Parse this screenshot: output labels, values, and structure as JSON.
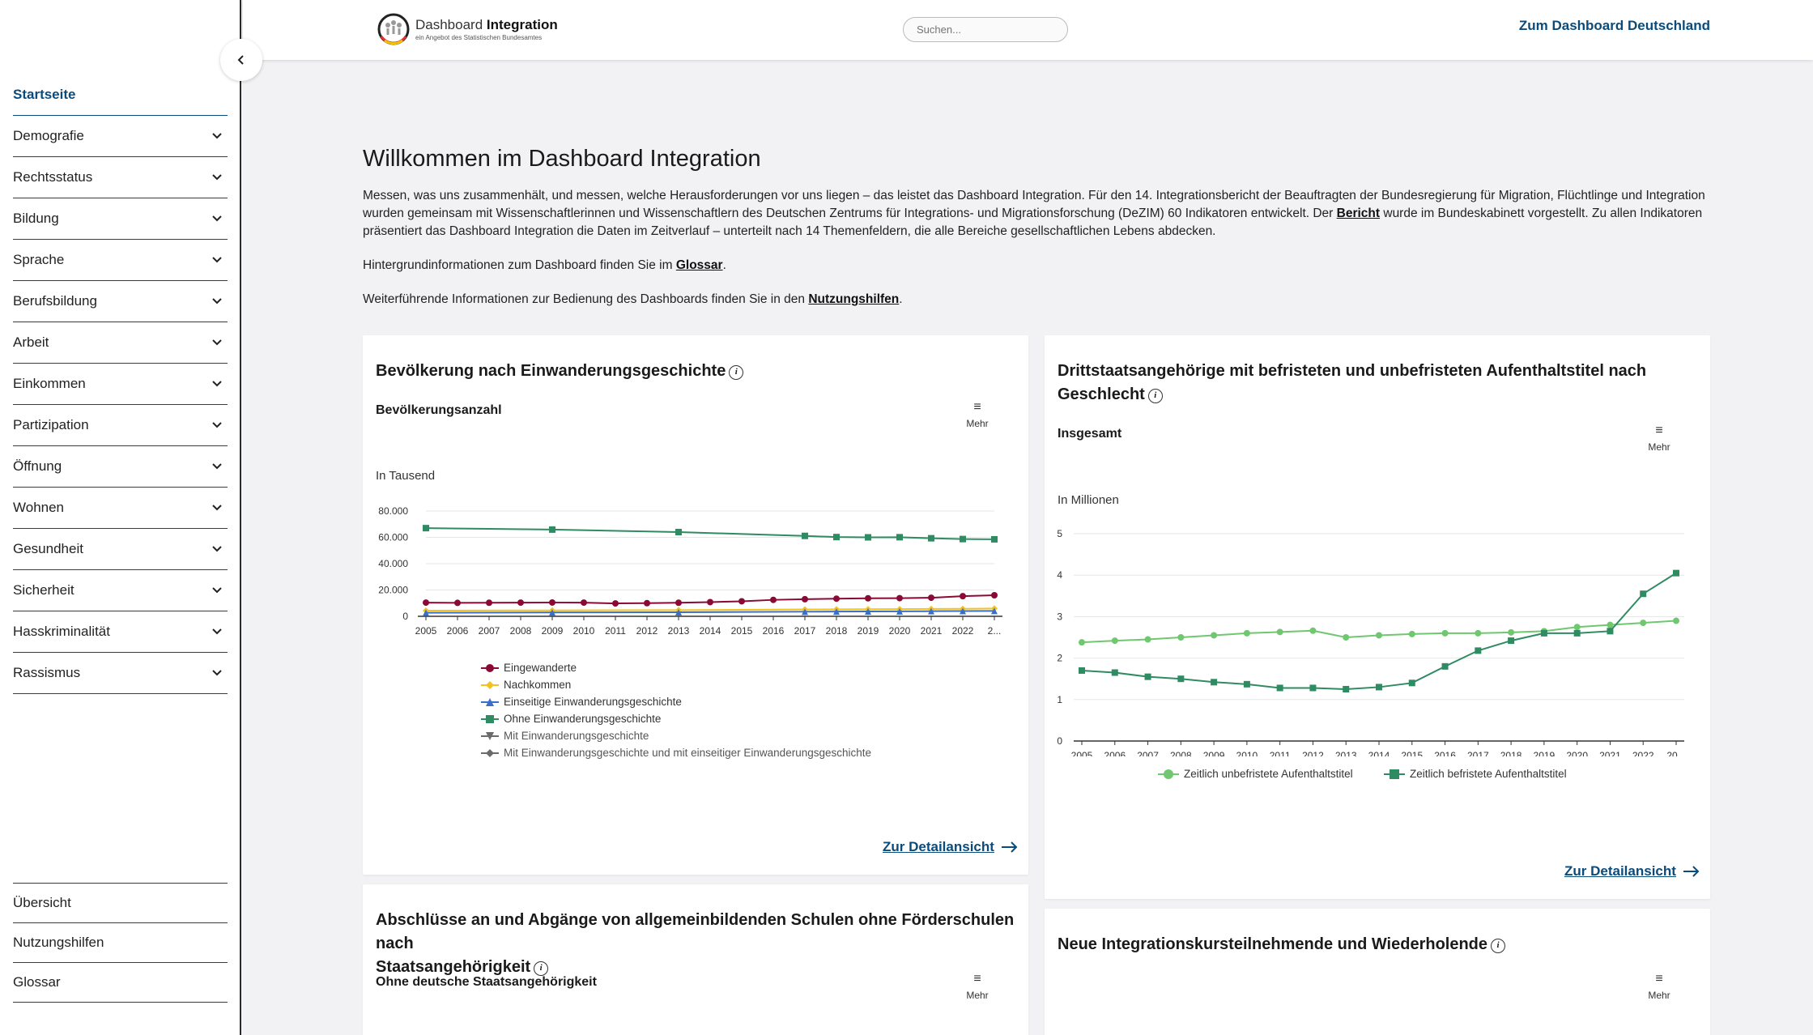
{
  "header": {
    "logo_name": "Dashboard",
    "logo_bold": "Integration",
    "logo_sub": "ein Angebot des Statistischen Bundesamtes",
    "search_placeholder": "Suchen...",
    "link_deutschland": "Zum Dashboard Deutschland"
  },
  "sidebar": {
    "items": [
      {
        "label": "Startseite"
      },
      {
        "label": "Demografie"
      },
      {
        "label": "Rechtsstatus"
      },
      {
        "label": "Bildung"
      },
      {
        "label": "Sprache"
      },
      {
        "label": "Berufsbildung"
      },
      {
        "label": "Arbeit"
      },
      {
        "label": "Einkommen"
      },
      {
        "label": "Partizipation"
      },
      {
        "label": "Öffnung"
      },
      {
        "label": "Wohnen"
      },
      {
        "label": "Gesundheit"
      },
      {
        "label": "Sicherheit"
      },
      {
        "label": "Hasskriminalität"
      },
      {
        "label": "Rassismus"
      }
    ],
    "bottom": [
      {
        "label": "Übersicht"
      },
      {
        "label": "Nutzungshilfen"
      },
      {
        "label": "Glossar"
      }
    ]
  },
  "main": {
    "title": "Willkommen im Dashboard Integration",
    "p1_a": "Messen, was uns zusammenhält, und messen, welche Herausforderungen vor uns liegen – das leistet das Dashboard Integration. Für den 14. Integrationsbericht der Beauftragten der Bundesregierung für Migration, Flüchtlinge und Integration wurden gemeinsam mit Wissenschaftlerinnen und Wissenschaftlern des Deutschen Zentrums für Integrations- und Migrationsforschung (DeZIM) 60 Indikatoren entwickelt. Der ",
    "p1_link": "Bericht",
    "p1_b": " wurde im Bundeskabinett vorgestellt. Zu allen Indikatoren präsentiert das Dashboard Integration die Daten im Zeitverlauf – unterteilt nach 14 Themenfeldern, die alle Bereiche gesellschaftlichen Lebens abdecken.",
    "p2_a": "Hintergrundinformationen zum Dashboard finden Sie im ",
    "p2_link": "Glossar",
    "p2_b": ".",
    "p3_a": "Weiterführende Informationen zur Bedienung des Dashboards finden Sie in den ",
    "p3_link": "Nutzungshilfen",
    "p3_b": "."
  },
  "cards": {
    "mehr": "Mehr",
    "detail": "Zur Detailansicht",
    "c1_title": "Bevölkerung nach Einwanderungsgeschichte",
    "c1_sub": "Bevölkerungsanzahl",
    "c1_unit": "In Tausend",
    "c2_title_l1": "Drittstaatsangehörige mit befristeten und unbefristeten Aufenthaltstitel nach",
    "c2_title_l2": "Geschlecht",
    "c2_sub": "Insgesamt",
    "c2_unit": "In Millionen",
    "c3_title_l1": "Abschlüsse an und Abgänge von allgemeinbildenden Schulen ohne Förderschulen nach",
    "c3_title_l2": "Staatsangehörigkeit",
    "c3_sub": "Ohne deutsche Staatsangehörigkeit",
    "c4_title": "Neue Integrationskursteilnehmende und Wiederholende"
  },
  "chart_data": [
    {
      "type": "line",
      "title": "Bevölkerungsanzahl",
      "ylabel": "In Tausend",
      "x": [
        "2005",
        "2006",
        "2007",
        "2008",
        "2009",
        "2010",
        "2011",
        "2012",
        "2013",
        "2014",
        "2015",
        "2016",
        "2017",
        "2018",
        "2019",
        "2020",
        "2021",
        "2022",
        "2..."
      ],
      "yticks": [
        "0",
        "20.000",
        "40.000",
        "60.000",
        "80.000"
      ],
      "ylim": [
        0,
        80000
      ],
      "series": [
        {
          "name": "Eingewanderte",
          "color": "#8b0a35",
          "marker": "circle",
          "points": [
            [
              2005,
              10400
            ],
            [
              2006,
              10200
            ],
            [
              2007,
              10300
            ],
            [
              2008,
              10400
            ],
            [
              2009,
              10500
            ],
            [
              2010,
              10400
            ],
            [
              2011,
              9800
            ],
            [
              2012,
              10000
            ],
            [
              2013,
              10300
            ],
            [
              2014,
              10800
            ],
            [
              2015,
              11400
            ],
            [
              2016,
              12500
            ],
            [
              2017,
              13000
            ],
            [
              2018,
              13400
            ],
            [
              2019,
              13700
            ],
            [
              2020,
              13800
            ],
            [
              2021,
              14100
            ],
            [
              2022,
              15300
            ],
            [
              2023,
              16000
            ]
          ]
        },
        {
          "name": "Nachkommen",
          "color": "#f2c31f",
          "marker": "diamond",
          "points": [
            [
              2005,
              4300
            ],
            [
              2009,
              4500
            ],
            [
              2013,
              4700
            ],
            [
              2017,
              5200
            ],
            [
              2018,
              5300
            ],
            [
              2019,
              5400
            ],
            [
              2020,
              5500
            ],
            [
              2021,
              5600
            ],
            [
              2022,
              5700
            ],
            [
              2023,
              5900
            ]
          ]
        },
        {
          "name": "Einseitige Einwanderungsgeschichte",
          "color": "#3a6fc8",
          "marker": "triangle",
          "points": [
            [
              2005,
              2700
            ],
            [
              2009,
              2900
            ],
            [
              2013,
              3100
            ],
            [
              2017,
              3500
            ],
            [
              2018,
              3600
            ],
            [
              2019,
              3700
            ],
            [
              2020,
              3800
            ],
            [
              2021,
              3900
            ],
            [
              2022,
              4000
            ],
            [
              2023,
              4100
            ]
          ]
        },
        {
          "name": "Ohne Einwanderungsgeschichte",
          "color": "#2e8b62",
          "marker": "square",
          "points": [
            [
              2005,
              67000
            ],
            [
              2009,
              65900
            ],
            [
              2013,
              64000
            ],
            [
              2017,
              61100
            ],
            [
              2018,
              60200
            ],
            [
              2019,
              60000
            ],
            [
              2020,
              60100
            ],
            [
              2021,
              59300
            ],
            [
              2022,
              58700
            ],
            [
              2023,
              58500
            ]
          ]
        },
        {
          "name": "Mit Einwanderungsgeschichte",
          "color": "#6b6b6b",
          "marker": "triangle-down",
          "points": []
        },
        {
          "name": "Mit Einwanderungsgeschichte und mit einseitiger Einwanderungsgeschichte",
          "color": "#6b6b6b",
          "marker": "diamond",
          "points": []
        }
      ]
    },
    {
      "type": "line",
      "title": "Insgesamt",
      "ylabel": "In Millionen",
      "x": [
        "2005",
        "2006",
        "2007",
        "2008",
        "2009",
        "2010",
        "2011",
        "2012",
        "2013",
        "2014",
        "2015",
        "2016",
        "2017",
        "2018",
        "2019",
        "2020",
        "2021",
        "2022",
        "20..."
      ],
      "yticks": [
        "0",
        "1",
        "2",
        "3",
        "4",
        "5"
      ],
      "ylim": [
        0,
        5
      ],
      "series": [
        {
          "name": "Zeitlich unbefristete Aufenthaltstitel",
          "color": "#6fc86f",
          "marker": "circle",
          "values": [
            2.38,
            2.42,
            2.45,
            2.5,
            2.55,
            2.6,
            2.63,
            2.66,
            2.5,
            2.55,
            2.58,
            2.6,
            2.6,
            2.62,
            2.65,
            2.75,
            2.8,
            2.85,
            2.9
          ]
        },
        {
          "name": "Zeitlich befristete Aufenthaltstitel",
          "color": "#2e8b62",
          "marker": "square",
          "values": [
            1.7,
            1.65,
            1.55,
            1.5,
            1.42,
            1.37,
            1.28,
            1.28,
            1.25,
            1.3,
            1.4,
            1.8,
            2.18,
            2.42,
            2.6,
            2.6,
            2.65,
            3.55,
            4.05
          ]
        }
      ]
    }
  ]
}
